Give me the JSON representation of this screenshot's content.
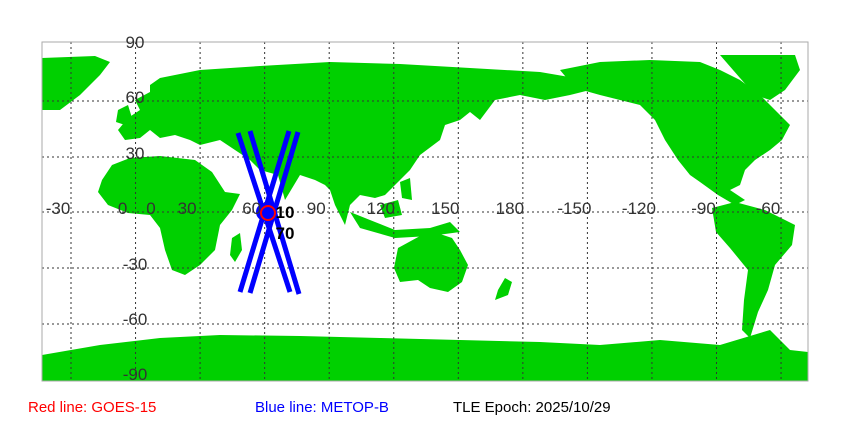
{
  "colors": {
    "land": "#00d000",
    "ocean": "#ffffff",
    "goes_track": "#ff0000",
    "metop_track": "#0000ff",
    "grid": "#333333"
  },
  "map": {
    "lat_labels": [
      "90",
      "60",
      "30",
      "0",
      "-30",
      "-60",
      "-90"
    ],
    "lon_labels": [
      "-30",
      "0",
      "30",
      "60",
      "90",
      "120",
      "150",
      "180",
      "-150",
      "-120",
      "-90",
      "-60"
    ],
    "marker_labels": [
      "10",
      "70"
    ]
  },
  "legend": {
    "red": "Red line: GOES-15",
    "blue": "Blue line: METOP-B",
    "epoch": "TLE Epoch: 2025/10/29"
  }
}
